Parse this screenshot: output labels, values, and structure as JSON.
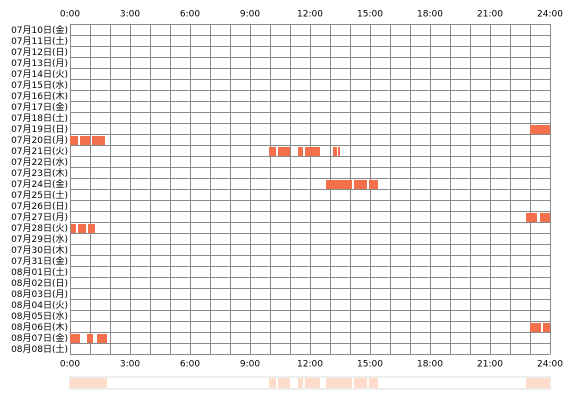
{
  "chart_data": {
    "type": "timeline",
    "xlim": [
      0,
      24
    ],
    "xticks": [
      {
        "value": 0,
        "label": "0:00"
      },
      {
        "value": 3,
        "label": "3:00"
      },
      {
        "value": 6,
        "label": "6:00"
      },
      {
        "value": 9,
        "label": "9:00"
      },
      {
        "value": 12,
        "label": "12:00"
      },
      {
        "value": 15,
        "label": "15:00"
      },
      {
        "value": 18,
        "label": "18:00"
      },
      {
        "value": 21,
        "label": "21:00"
      },
      {
        "value": 24,
        "label": "24:00"
      }
    ],
    "color": "#f4704c",
    "summary_color": "#fddccb",
    "grid": true,
    "days": [
      {
        "label": "07月10日(金)",
        "segments": []
      },
      {
        "label": "07月11日(土)",
        "segments": []
      },
      {
        "label": "07月12日(日)",
        "segments": []
      },
      {
        "label": "07月13日(月)",
        "segments": []
      },
      {
        "label": "07月14日(火)",
        "segments": []
      },
      {
        "label": "07月15日(水)",
        "segments": []
      },
      {
        "label": "07月16日(木)",
        "segments": []
      },
      {
        "label": "07月17日(金)",
        "segments": []
      },
      {
        "label": "07月18日(土)",
        "segments": []
      },
      {
        "label": "07月19日(日)",
        "segments": [
          [
            23.0,
            24.0
          ]
        ]
      },
      {
        "label": "07月20日(月)",
        "segments": [
          [
            0.0,
            0.4
          ],
          [
            0.5,
            1.0
          ],
          [
            1.1,
            1.75
          ]
        ]
      },
      {
        "label": "07月21日(火)",
        "segments": [
          [
            9.95,
            10.3
          ],
          [
            10.4,
            11.0
          ],
          [
            11.4,
            11.65
          ],
          [
            11.75,
            12.5
          ],
          [
            13.15,
            13.35
          ],
          [
            13.4,
            13.5
          ]
        ]
      },
      {
        "label": "07月22日(水)",
        "segments": []
      },
      {
        "label": "07月23日(木)",
        "segments": []
      },
      {
        "label": "07月24日(金)",
        "segments": [
          [
            12.8,
            14.1
          ],
          [
            14.2,
            14.85
          ],
          [
            14.95,
            15.4
          ]
        ]
      },
      {
        "label": "07月25日(土)",
        "segments": []
      },
      {
        "label": "07月26日(日)",
        "segments": []
      },
      {
        "label": "07月27日(月)",
        "segments": [
          [
            22.8,
            23.35
          ],
          [
            23.5,
            24.0
          ]
        ]
      },
      {
        "label": "07月28日(火)",
        "segments": [
          [
            0.05,
            0.3
          ],
          [
            0.4,
            0.8
          ],
          [
            0.9,
            1.25
          ]
        ]
      },
      {
        "label": "07月29日(水)",
        "segments": []
      },
      {
        "label": "07月30日(木)",
        "segments": []
      },
      {
        "label": "07月31日(金)",
        "segments": []
      },
      {
        "label": "08月01日(土)",
        "segments": []
      },
      {
        "label": "08月02日(日)",
        "segments": []
      },
      {
        "label": "08月03日(月)",
        "segments": []
      },
      {
        "label": "08月04日(火)",
        "segments": []
      },
      {
        "label": "08月05日(水)",
        "segments": []
      },
      {
        "label": "08月06日(木)",
        "segments": [
          [
            23.0,
            23.55
          ],
          [
            23.65,
            24.0
          ]
        ]
      },
      {
        "label": "08月07日(金)",
        "segments": [
          [
            0.0,
            0.5
          ],
          [
            0.85,
            1.15
          ],
          [
            1.35,
            1.85
          ]
        ]
      },
      {
        "label": "08月08日(土)",
        "segments": []
      }
    ]
  }
}
